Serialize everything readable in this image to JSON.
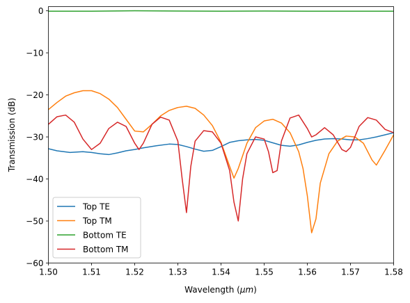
{
  "chart_data": {
    "type": "line",
    "title": "",
    "xlabel_main": "Wavelength (",
    "xlabel_unit": "μm",
    "xlabel_close": ")",
    "ylabel": "Transmission (dB)",
    "xlim": [
      1.5,
      1.58
    ],
    "ylim": [
      -60,
      1
    ],
    "x_ticks": [
      "1.50",
      "1.51",
      "1.52",
      "1.53",
      "1.54",
      "1.55",
      "1.56",
      "1.57",
      "1.58"
    ],
    "y_ticks": [
      "0",
      "−10",
      "−20",
      "−30",
      "−40",
      "−50",
      "−60"
    ],
    "grid": false,
    "legend_position": "lower-left",
    "series": [
      {
        "name": "Top TE",
        "color": "#1f77b4",
        "x": [
          1.5,
          1.502,
          1.505,
          1.508,
          1.51,
          1.512,
          1.514,
          1.516,
          1.518,
          1.52,
          1.522,
          1.525,
          1.528,
          1.53,
          1.532,
          1.534,
          1.536,
          1.538,
          1.54,
          1.542,
          1.544,
          1.546,
          1.548,
          1.55,
          1.552,
          1.554,
          1.556,
          1.558,
          1.56,
          1.562,
          1.564,
          1.566,
          1.568,
          1.57,
          1.572,
          1.574,
          1.576,
          1.578,
          1.58
        ],
        "y": [
          -32.8,
          -33.3,
          -33.7,
          -33.5,
          -33.7,
          -34.0,
          -34.2,
          -33.8,
          -33.3,
          -33.0,
          -32.6,
          -32.1,
          -31.7,
          -31.8,
          -32.3,
          -32.9,
          -33.4,
          -33.2,
          -32.3,
          -31.3,
          -30.9,
          -30.7,
          -30.6,
          -30.8,
          -31.4,
          -32.0,
          -32.2,
          -31.9,
          -31.3,
          -30.8,
          -30.5,
          -30.4,
          -30.5,
          -30.7,
          -30.7,
          -30.4,
          -30.0,
          -29.5,
          -29.0
        ]
      },
      {
        "name": "Top TM",
        "color": "#ff7f0e",
        "x": [
          1.5,
          1.502,
          1.504,
          1.506,
          1.508,
          1.51,
          1.512,
          1.514,
          1.516,
          1.518,
          1.52,
          1.522,
          1.524,
          1.526,
          1.528,
          1.53,
          1.532,
          1.534,
          1.536,
          1.538,
          1.54,
          1.542,
          1.543,
          1.544,
          1.546,
          1.548,
          1.55,
          1.552,
          1.554,
          1.556,
          1.558,
          1.559,
          1.56,
          1.561,
          1.562,
          1.563,
          1.565,
          1.567,
          1.569,
          1.571,
          1.573,
          1.575,
          1.576,
          1.578,
          1.58
        ],
        "y": [
          -23.5,
          -21.8,
          -20.3,
          -19.5,
          -19.0,
          -19.0,
          -19.7,
          -21.0,
          -23.0,
          -25.8,
          -28.6,
          -28.8,
          -27.0,
          -25.0,
          -23.7,
          -23.0,
          -22.7,
          -23.2,
          -24.8,
          -27.3,
          -31.3,
          -37.0,
          -39.8,
          -37.5,
          -31.5,
          -27.8,
          -26.2,
          -25.8,
          -26.7,
          -29.0,
          -33.5,
          -37.5,
          -44.0,
          -52.8,
          -49.5,
          -41.0,
          -34.0,
          -31.0,
          -29.8,
          -30.0,
          -31.5,
          -35.5,
          -36.7,
          -33.2,
          -29.5
        ]
      },
      {
        "name": "Bottom TE",
        "color": "#2ca02c",
        "x": [
          1.5,
          1.51,
          1.52,
          1.53,
          1.54,
          1.55,
          1.56,
          1.57,
          1.58
        ],
        "y": [
          -0.1,
          -0.1,
          0.0,
          -0.05,
          -0.1,
          -0.05,
          -0.1,
          -0.1,
          -0.1
        ]
      },
      {
        "name": "Bottom TM",
        "color": "#d62728",
        "x": [
          1.5,
          1.502,
          1.504,
          1.506,
          1.508,
          1.51,
          1.512,
          1.514,
          1.516,
          1.518,
          1.52,
          1.521,
          1.522,
          1.524,
          1.526,
          1.528,
          1.53,
          1.531,
          1.532,
          1.533,
          1.534,
          1.536,
          1.538,
          1.54,
          1.542,
          1.543,
          1.544,
          1.545,
          1.546,
          1.548,
          1.55,
          1.551,
          1.552,
          1.553,
          1.554,
          1.556,
          1.558,
          1.56,
          1.561,
          1.562,
          1.564,
          1.566,
          1.568,
          1.569,
          1.57,
          1.572,
          1.574,
          1.576,
          1.578,
          1.58
        ],
        "y": [
          -27.0,
          -25.2,
          -24.8,
          -26.5,
          -30.5,
          -33.0,
          -31.5,
          -28.0,
          -26.5,
          -27.5,
          -31.5,
          -33.0,
          -31.5,
          -27.0,
          -25.3,
          -26.0,
          -31.0,
          -40.0,
          -48.0,
          -37.0,
          -31.0,
          -28.5,
          -28.8,
          -31.5,
          -38.0,
          -45.5,
          -50.0,
          -40.0,
          -34.0,
          -30.0,
          -30.5,
          -33.5,
          -38.5,
          -38.0,
          -31.0,
          -25.5,
          -24.8,
          -28.0,
          -30.0,
          -29.5,
          -27.8,
          -29.5,
          -33.0,
          -33.5,
          -32.5,
          -27.5,
          -25.4,
          -26.0,
          -28.2,
          -29.0
        ]
      }
    ]
  }
}
